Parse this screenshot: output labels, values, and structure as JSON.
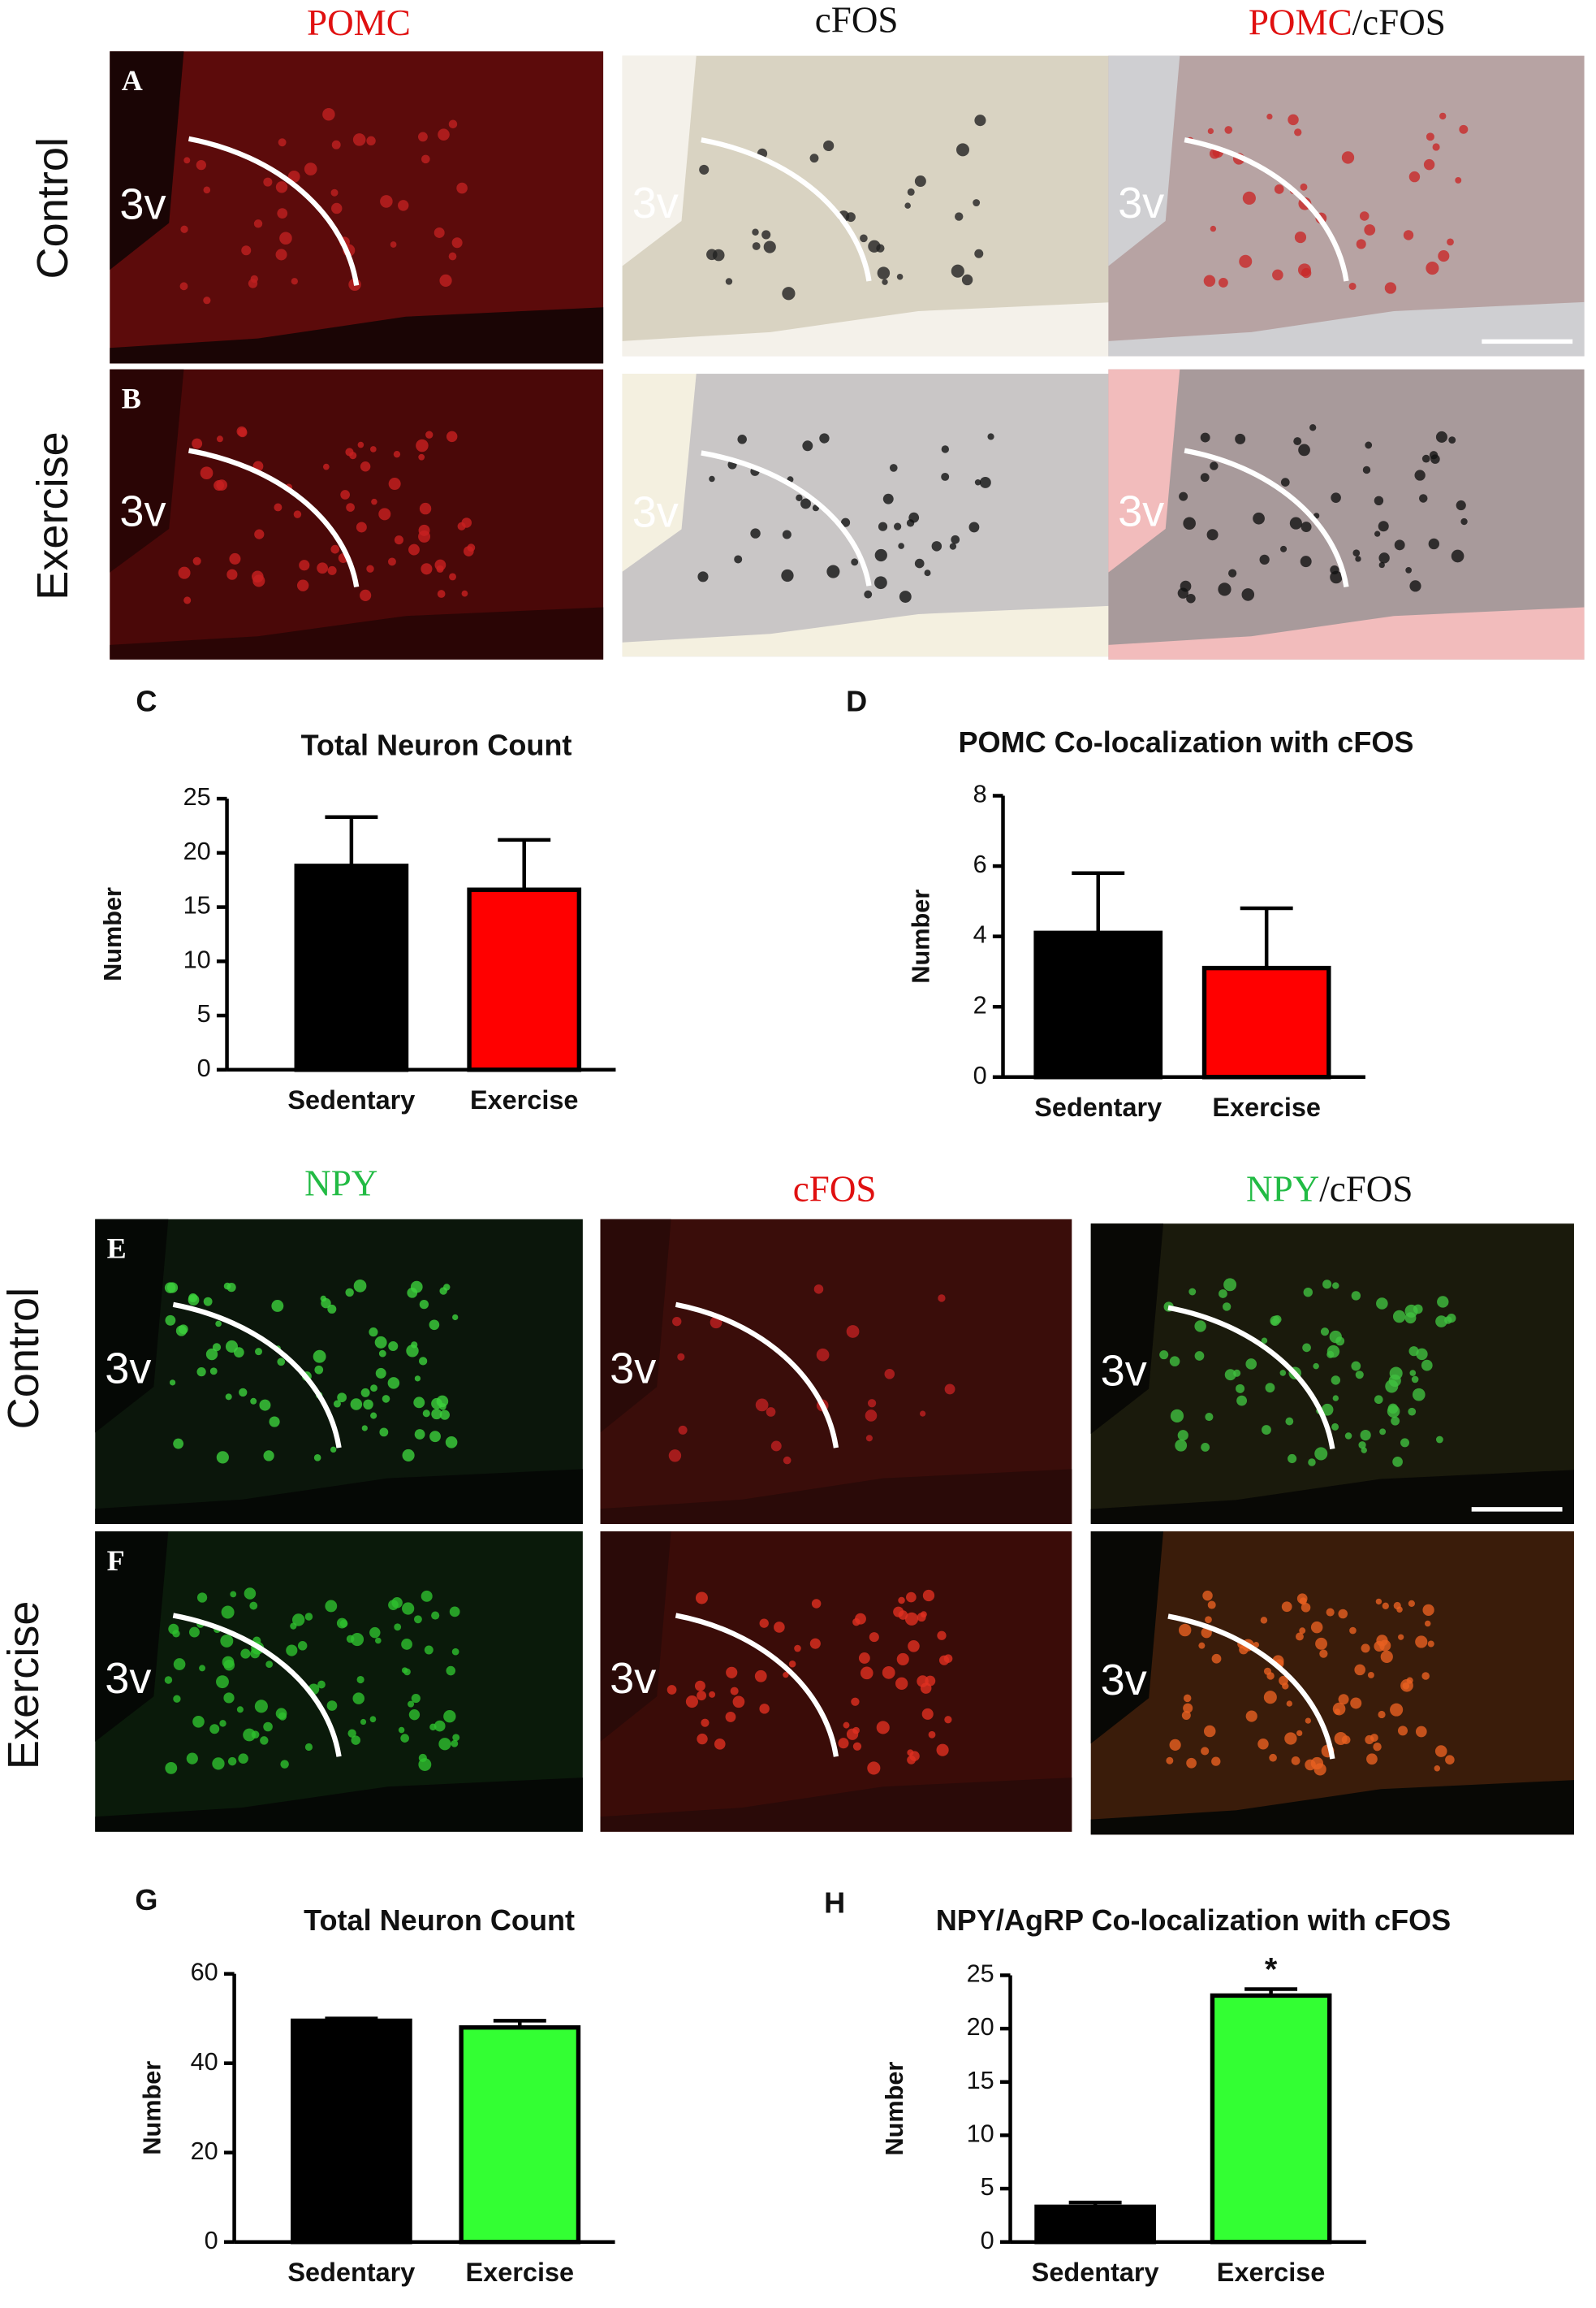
{
  "chart_data": [
    {
      "type": "bar",
      "panel": "C",
      "title": "Total Neuron Count",
      "ylabel": "Number",
      "categories": [
        "Sedentary",
        "Exercise"
      ],
      "values": [
        18.8,
        16.6
      ],
      "errors": [
        4.5,
        4.6
      ],
      "colors": [
        "#000000",
        "#ff0000"
      ],
      "ylim": [
        0,
        25
      ],
      "yticks": [
        0,
        5,
        10,
        15,
        20,
        25
      ]
    },
    {
      "type": "bar",
      "panel": "D",
      "title": "POMC Co-localization with cFOS",
      "ylabel": "Number",
      "categories": [
        "Sedentary",
        "Exercise"
      ],
      "values": [
        4.1,
        3.1
      ],
      "errors": [
        1.7,
        1.7
      ],
      "colors": [
        "#000000",
        "#ff0000"
      ],
      "ylim": [
        0,
        8
      ],
      "yticks": [
        0,
        2,
        4,
        6,
        8
      ]
    },
    {
      "type": "bar",
      "panel": "G",
      "title": "Total Neuron Count",
      "ylabel": "Number",
      "categories": [
        "Sedentary",
        "Exercise"
      ],
      "values": [
        49.5,
        48
      ],
      "errors": [
        0.5,
        1.5
      ],
      "colors": [
        "#000000",
        "#33ff33"
      ],
      "ylim": [
        0,
        60
      ],
      "yticks": [
        0,
        20,
        40,
        60
      ]
    },
    {
      "type": "bar",
      "panel": "H",
      "title": "NPY/AgRP Co-localization with cFOS",
      "ylabel": "Number",
      "categories": [
        "Sedentary",
        "Exercise"
      ],
      "values": [
        3.3,
        23.1
      ],
      "errors": [
        0.4,
        0.6
      ],
      "colors": [
        "#000000",
        "#33ff33"
      ],
      "ylim": [
        0,
        25
      ],
      "yticks": [
        0,
        5,
        10,
        15,
        20,
        25
      ],
      "annotations": [
        {
          "category": "Exercise",
          "text": "*"
        }
      ]
    }
  ],
  "micrographs": {
    "ventricle_label": "3v",
    "blocks": [
      {
        "columns": [
          [
            "POMC"
          ],
          [
            "cFOS"
          ],
          [
            "POMC",
            "/cFOS"
          ]
        ],
        "rows": [
          "Control",
          "Exercise"
        ],
        "panels": [
          "A",
          "B"
        ]
      },
      {
        "columns": [
          [
            "NPY"
          ],
          [
            "cFOS"
          ],
          [
            "NPY",
            "/cFOS"
          ]
        ],
        "rows": [
          "Control",
          "Exercise"
        ],
        "panels": [
          "E",
          "F"
        ]
      }
    ]
  }
}
